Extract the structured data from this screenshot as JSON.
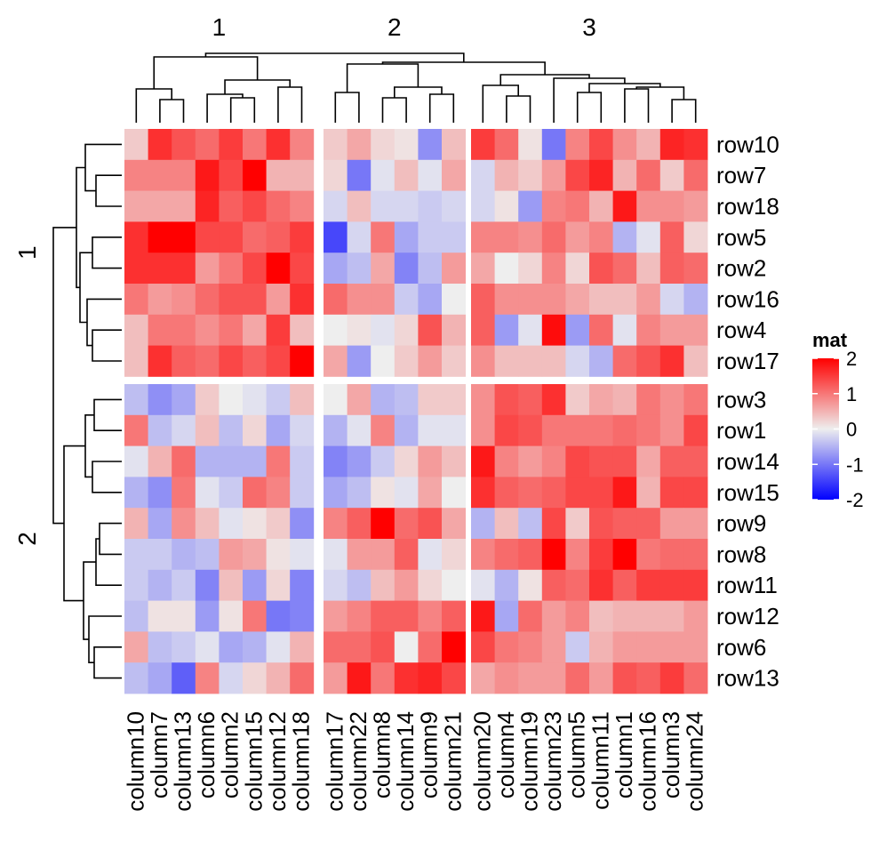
{
  "chart_data": {
    "type": "heatmap",
    "column_slices": [
      {
        "label": "1",
        "columns": [
          "column10",
          "column7",
          "column13",
          "column6",
          "column2",
          "column15",
          "column12",
          "column18"
        ]
      },
      {
        "label": "2",
        "columns": [
          "column17",
          "column22",
          "column8",
          "column14",
          "column9",
          "column21"
        ]
      },
      {
        "label": "3",
        "columns": [
          "column20",
          "column4",
          "column19",
          "column23",
          "column5",
          "column11",
          "column1",
          "column16",
          "column3",
          "column24"
        ]
      }
    ],
    "row_slices": [
      {
        "label": "1",
        "rows": [
          "row10",
          "row7",
          "row18",
          "row5",
          "row2",
          "row16",
          "row4",
          "row17"
        ]
      },
      {
        "label": "2",
        "rows": [
          "row3",
          "row1",
          "row14",
          "row15",
          "row9",
          "row8",
          "row11",
          "row12",
          "row6",
          "row13"
        ]
      }
    ],
    "values": [
      [
        0.3,
        1.6,
        1.3,
        1.1,
        1.5,
        1.0,
        1.6,
        0.9,
        0.3,
        0.6,
        0.2,
        0.1,
        -0.8,
        0.4,
        1.5,
        1.1,
        0.1,
        -1.0,
        0.9,
        1.4,
        0.8,
        0.5,
        1.7,
        1.6
      ],
      [
        0.9,
        0.9,
        0.9,
        1.8,
        1.4,
        2.1,
        0.5,
        0.5,
        0.2,
        -1.0,
        -0.1,
        0.4,
        -0.1,
        0.6,
        -0.2,
        0.5,
        0.3,
        0.7,
        1.4,
        1.7,
        0.5,
        1.1,
        0.3,
        1.1
      ],
      [
        0.6,
        0.6,
        0.6,
        1.7,
        1.2,
        1.4,
        1.1,
        0.9,
        -0.2,
        0.4,
        -0.2,
        -0.2,
        -0.3,
        -0.2,
        -0.2,
        0.1,
        -0.7,
        0.9,
        1.0,
        0.5,
        1.8,
        0.8,
        0.8,
        0.7
      ],
      [
        1.6,
        2.2,
        2.2,
        1.4,
        1.4,
        1.1,
        1.2,
        1.5,
        -1.4,
        -0.2,
        1.0,
        -0.6,
        -0.3,
        -0.3,
        0.9,
        0.9,
        0.8,
        1.1,
        0.7,
        0.9,
        -0.5,
        -0.1,
        1.2,
        0.2
      ],
      [
        1.6,
        1.6,
        1.6,
        0.7,
        1.0,
        1.4,
        2.2,
        1.4,
        -0.6,
        -0.4,
        0.6,
        -0.9,
        -0.4,
        0.7,
        0.6,
        0.0,
        0.2,
        0.9,
        0.2,
        1.3,
        1.1,
        0.4,
        1.2,
        1.1
      ],
      [
        1.0,
        0.7,
        0.8,
        1.1,
        1.3,
        1.3,
        0.7,
        1.6,
        1.1,
        0.8,
        0.8,
        -0.3,
        -0.6,
        0.0,
        1.2,
        0.8,
        0.8,
        0.8,
        0.6,
        0.4,
        0.4,
        0.7,
        -0.2,
        -0.5
      ],
      [
        0.4,
        1.0,
        1.0,
        0.8,
        1.0,
        0.6,
        1.5,
        0.4,
        0.0,
        0.1,
        -0.1,
        0.2,
        1.3,
        0.5,
        1.2,
        -0.7,
        -0.1,
        1.9,
        -0.7,
        1.1,
        -0.1,
        0.9,
        0.7,
        0.7
      ],
      [
        0.4,
        1.6,
        1.2,
        1.1,
        1.4,
        1.2,
        1.4,
        2.3,
        0.6,
        -0.7,
        0.0,
        0.3,
        0.7,
        0.3,
        0.8,
        0.4,
        0.4,
        0.4,
        -0.2,
        -0.5,
        1.1,
        1.3,
        1.6,
        0.4
      ],
      [
        -0.4,
        -0.8,
        -0.6,
        0.3,
        0.0,
        -0.1,
        -0.3,
        0.4,
        0.0,
        0.6,
        -0.5,
        -0.4,
        0.3,
        0.3,
        0.8,
        1.3,
        1.2,
        1.6,
        0.3,
        0.6,
        0.5,
        1.0,
        0.8,
        1.0
      ],
      [
        1.0,
        -0.4,
        -0.2,
        0.4,
        -0.4,
        0.2,
        -0.6,
        -0.2,
        -0.5,
        -0.1,
        0.9,
        -0.5,
        -0.1,
        -0.1,
        0.8,
        1.4,
        1.3,
        1.0,
        1.0,
        1.0,
        1.1,
        1.0,
        0.8,
        1.4
      ],
      [
        -0.1,
        0.5,
        1.1,
        -0.5,
        -0.5,
        -0.5,
        1.0,
        -0.3,
        -0.9,
        -0.7,
        -0.3,
        0.2,
        0.7,
        0.4,
        1.8,
        0.9,
        0.7,
        0.9,
        1.4,
        1.3,
        1.3,
        0.6,
        1.2,
        1.2
      ],
      [
        -0.5,
        -0.8,
        1.0,
        -0.1,
        -0.3,
        1.1,
        0.9,
        -0.3,
        -0.6,
        -0.4,
        0.1,
        -0.1,
        0.6,
        0.0,
        1.6,
        1.2,
        1.1,
        1.2,
        1.4,
        1.4,
        1.8,
        0.5,
        1.4,
        1.4
      ],
      [
        0.5,
        -0.6,
        0.8,
        0.4,
        -0.1,
        0.1,
        0.3,
        -0.8,
        0.9,
        1.2,
        2.0,
        1.1,
        1.3,
        0.6,
        -0.5,
        0.4,
        -0.4,
        1.4,
        0.3,
        1.3,
        1.2,
        1.2,
        0.7,
        0.7
      ],
      [
        -0.3,
        -0.3,
        -0.5,
        -0.4,
        0.7,
        0.6,
        0.1,
        -0.1,
        -0.1,
        0.7,
        0.7,
        1.2,
        -0.1,
        0.2,
        0.9,
        1.1,
        1.2,
        2.0,
        0.9,
        1.5,
        2.2,
        1.0,
        1.1,
        1.1
      ],
      [
        -0.3,
        -0.5,
        -0.3,
        -0.9,
        0.4,
        -0.7,
        0.2,
        -0.9,
        -0.2,
        -0.4,
        0.4,
        0.7,
        0.2,
        0.0,
        -0.1,
        -0.5,
        0.1,
        1.2,
        1.1,
        1.6,
        1.2,
        1.5,
        1.5,
        1.5
      ],
      [
        -0.4,
        0.1,
        0.1,
        -0.7,
        0.1,
        1.0,
        -1.0,
        -0.9,
        0.7,
        0.9,
        1.2,
        1.2,
        0.9,
        1.2,
        1.8,
        -0.6,
        1.1,
        0.7,
        0.9,
        0.4,
        0.5,
        0.5,
        0.5,
        0.7
      ],
      [
        0.6,
        -0.4,
        -0.3,
        -0.1,
        -0.6,
        -0.5,
        -0.1,
        0.5,
        1.1,
        1.1,
        1.3,
        0.0,
        1.1,
        2.0,
        1.4,
        1.0,
        0.9,
        0.7,
        -0.3,
        0.5,
        0.7,
        0.7,
        0.7,
        0.7
      ],
      [
        -0.4,
        -0.6,
        -1.2,
        0.9,
        -0.2,
        0.2,
        0.5,
        1.1,
        0.7,
        1.8,
        1.0,
        1.6,
        1.7,
        1.4,
        0.6,
        0.8,
        0.7,
        0.7,
        1.1,
        0.7,
        1.3,
        1.2,
        1.5,
        1.1
      ]
    ],
    "legend": {
      "title": "mat",
      "ticks": [
        2,
        1,
        0,
        -1,
        -2
      ],
      "tick_labels": [
        "2",
        "1",
        "0",
        "-1",
        "-2"
      ]
    },
    "colors": {
      "low": "#0000ff",
      "mid": "#eeeeee",
      "high": "#ff0000"
    },
    "value_range": [
      -2,
      2
    ]
  }
}
